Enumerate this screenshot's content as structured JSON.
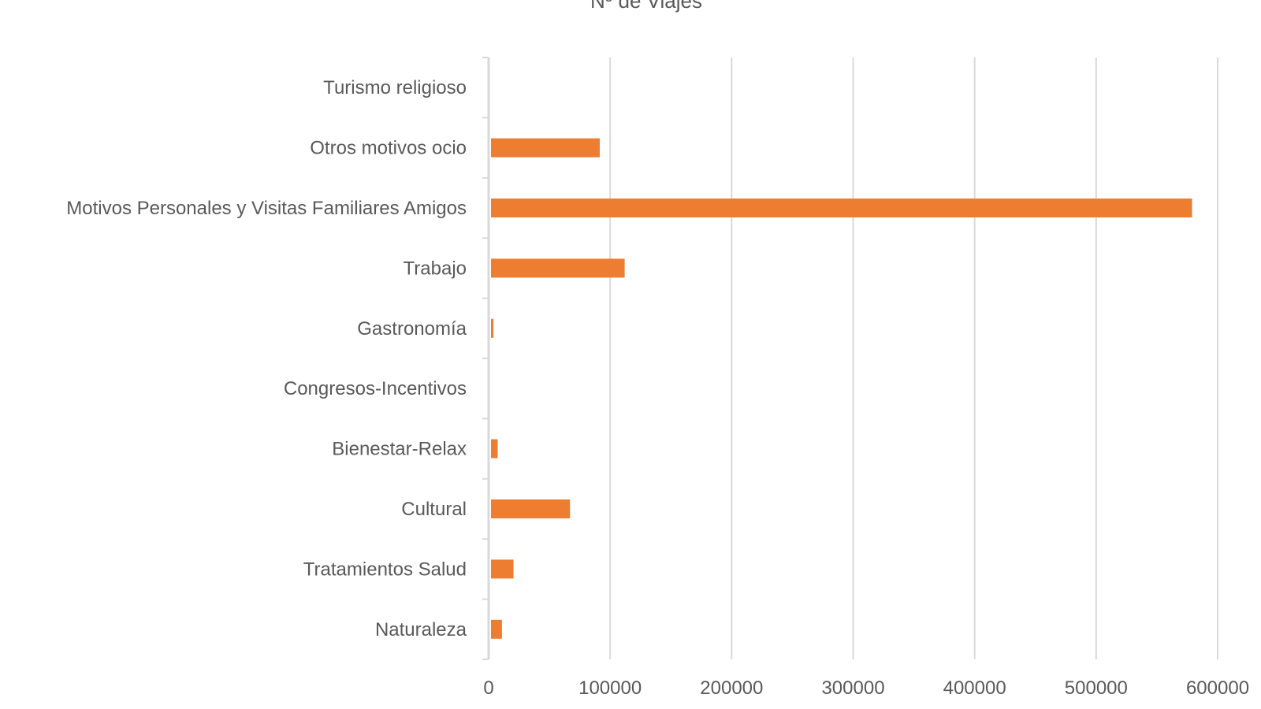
{
  "chart_data": {
    "type": "bar",
    "orientation": "horizontal",
    "title": "Nº de Viajes",
    "categories": [
      "Turismo religioso",
      "Otros motivos ocio",
      "Motivos Personales y Visitas Familiares Amigos",
      "Trabajo",
      "Gastronomía",
      "Congresos-Incentivos",
      "Bienestar-Relax",
      "Cultural",
      "Tratamientos Salud",
      "Naturaleza"
    ],
    "values": [
      0,
      89500,
      577000,
      110000,
      2000,
      0,
      5500,
      65000,
      18500,
      9000
    ],
    "xlim": [
      0,
      600000
    ],
    "xticks": [
      "0",
      "100000",
      "200000",
      "300000",
      "400000",
      "500000",
      "600000"
    ],
    "grid": true,
    "legend": "none",
    "bar_color": "#ED7D31",
    "grid_color": "#D9D9D9"
  }
}
